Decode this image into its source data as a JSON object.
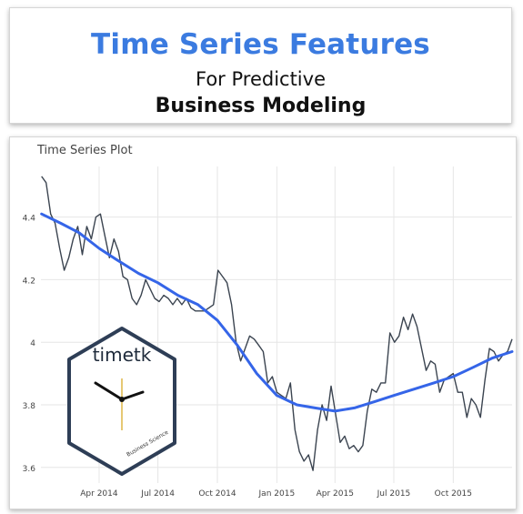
{
  "header": {
    "title": "Time Series Features",
    "subtitle_line1": "For Predictive",
    "subtitle_line2": "Business Modeling"
  },
  "logo": {
    "text": "timetk",
    "small_text": "Business Science",
    "border_color": "#2e3e56"
  },
  "colors": {
    "title_blue": "#3b7be0",
    "series_line": "#3b4450",
    "smooth_line": "#3565e8",
    "grid": "#e6e6e6"
  },
  "chart_data": {
    "type": "line",
    "title": "Time Series Plot",
    "xlabel": "",
    "ylabel": "",
    "x_range": [
      "2014-01-01",
      "2015-12-31"
    ],
    "ylim": [
      3.55,
      4.55
    ],
    "y_ticks": [
      3.6,
      3.8,
      4,
      4.2,
      4.4
    ],
    "y_tick_labels": [
      "3.6",
      "3.8",
      "4",
      "4.2",
      "4.4"
    ],
    "x_ticks": [
      "2014-04-01",
      "2014-07-01",
      "2014-10-01",
      "2015-01-01",
      "2015-04-01",
      "2015-07-01",
      "2015-10-01"
    ],
    "x_tick_labels": [
      "Apr 2014",
      "Jul 2014",
      "Oct 2014",
      "Jan 2015",
      "Apr 2015",
      "Jul 2015",
      "Oct 2015"
    ],
    "grid": true,
    "series": [
      {
        "role": "observed",
        "x": [
          "2014-01-02",
          "2014-01-09",
          "2014-01-16",
          "2014-01-23",
          "2014-01-30",
          "2014-02-06",
          "2014-02-13",
          "2014-02-20",
          "2014-02-27",
          "2014-03-06",
          "2014-03-13",
          "2014-03-20",
          "2014-03-27",
          "2014-04-03",
          "2014-04-10",
          "2014-04-17",
          "2014-04-24",
          "2014-05-01",
          "2014-05-08",
          "2014-05-15",
          "2014-05-22",
          "2014-05-29",
          "2014-06-05",
          "2014-06-12",
          "2014-06-19",
          "2014-06-26",
          "2014-07-03",
          "2014-07-10",
          "2014-07-17",
          "2014-07-24",
          "2014-07-31",
          "2014-08-07",
          "2014-08-14",
          "2014-08-21",
          "2014-08-28",
          "2014-09-04",
          "2014-09-11",
          "2014-09-18",
          "2014-09-25",
          "2014-10-02",
          "2014-10-09",
          "2014-10-16",
          "2014-10-23",
          "2014-10-30",
          "2014-11-06",
          "2014-11-13",
          "2014-11-20",
          "2014-11-27",
          "2014-12-04",
          "2014-12-11",
          "2014-12-18",
          "2014-12-25",
          "2015-01-01",
          "2015-01-08",
          "2015-01-15",
          "2015-01-22",
          "2015-01-29",
          "2015-02-05",
          "2015-02-12",
          "2015-02-19",
          "2015-02-26",
          "2015-03-05",
          "2015-03-12",
          "2015-03-19",
          "2015-03-26",
          "2015-04-02",
          "2015-04-09",
          "2015-04-16",
          "2015-04-23",
          "2015-04-30",
          "2015-05-07",
          "2015-05-14",
          "2015-05-21",
          "2015-05-28",
          "2015-06-04",
          "2015-06-11",
          "2015-06-18",
          "2015-06-25",
          "2015-07-02",
          "2015-07-09",
          "2015-07-16",
          "2015-07-23",
          "2015-07-30",
          "2015-08-06",
          "2015-08-13",
          "2015-08-20",
          "2015-08-27",
          "2015-09-03",
          "2015-09-10",
          "2015-09-17",
          "2015-09-24",
          "2015-10-01",
          "2015-10-08",
          "2015-10-15",
          "2015-10-22",
          "2015-10-29",
          "2015-11-05",
          "2015-11-12",
          "2015-11-19",
          "2015-11-26",
          "2015-12-03",
          "2015-12-10",
          "2015-12-17",
          "2015-12-24",
          "2015-12-31"
        ],
        "y": [
          4.53,
          4.51,
          4.41,
          4.38,
          4.3,
          4.23,
          4.27,
          4.33,
          4.37,
          4.28,
          4.37,
          4.33,
          4.4,
          4.41,
          4.34,
          4.27,
          4.33,
          4.29,
          4.21,
          4.2,
          4.14,
          4.12,
          4.15,
          4.2,
          4.17,
          4.14,
          4.13,
          4.15,
          4.14,
          4.12,
          4.14,
          4.12,
          4.14,
          4.11,
          4.1,
          4.1,
          4.1,
          4.11,
          4.12,
          4.23,
          4.21,
          4.19,
          4.12,
          4.0,
          3.94,
          3.98,
          4.02,
          4.01,
          3.99,
          3.97,
          3.87,
          3.89,
          3.84,
          3.83,
          3.82,
          3.87,
          3.72,
          3.65,
          3.62,
          3.64,
          3.59,
          3.72,
          3.8,
          3.75,
          3.86,
          3.77,
          3.68,
          3.7,
          3.66,
          3.67,
          3.65,
          3.67,
          3.78,
          3.85,
          3.84,
          3.87,
          3.87,
          4.03,
          4.0,
          4.02,
          4.08,
          4.04,
          4.09,
          4.05,
          3.98,
          3.91,
          3.94,
          3.93,
          3.84,
          3.88,
          3.89,
          3.9,
          3.84,
          3.84,
          3.76,
          3.82,
          3.8,
          3.76,
          3.88,
          3.98,
          3.97,
          3.94,
          3.96,
          3.97,
          4.01
        ]
      },
      {
        "role": "smoother",
        "x": [
          "2014-01-02",
          "2014-02-01",
          "2014-03-01",
          "2014-04-01",
          "2014-05-01",
          "2014-06-01",
          "2014-07-01",
          "2014-08-01",
          "2014-09-01",
          "2014-10-01",
          "2014-11-01",
          "2014-12-01",
          "2015-01-01",
          "2015-02-01",
          "2015-03-01",
          "2015-04-01",
          "2015-05-01",
          "2015-06-01",
          "2015-07-01",
          "2015-08-01",
          "2015-09-01",
          "2015-10-01",
          "2015-11-01",
          "2015-12-01",
          "2015-12-31"
        ],
        "y": [
          4.41,
          4.38,
          4.35,
          4.3,
          4.26,
          4.22,
          4.19,
          4.15,
          4.12,
          4.07,
          3.99,
          3.9,
          3.83,
          3.8,
          3.79,
          3.78,
          3.79,
          3.81,
          3.83,
          3.85,
          3.87,
          3.89,
          3.92,
          3.95,
          3.97
        ]
      }
    ]
  }
}
